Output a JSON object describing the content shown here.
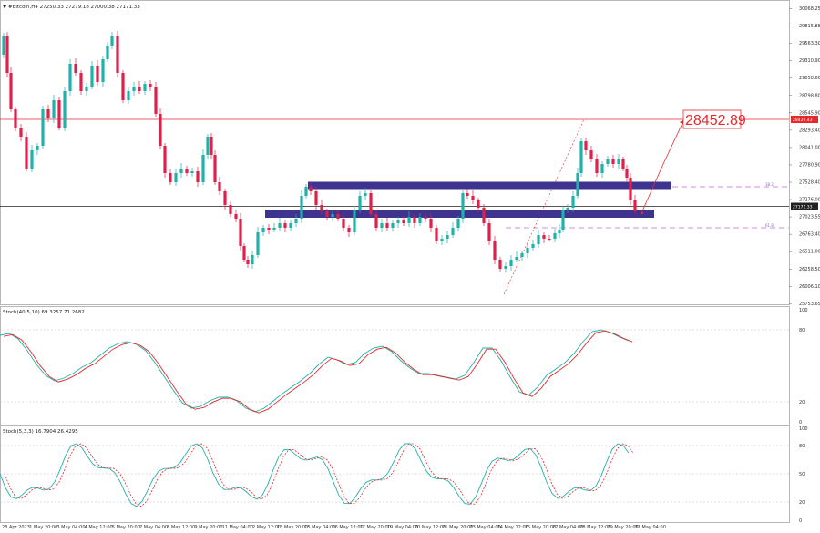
{
  "main": {
    "header": "▼ #Bitcoin,H4  27250.33 27279.18 27000.38 27171.33",
    "price_labels": [
      "30068.25",
      "29815.88",
      "29563.30",
      "29310.90",
      "29058.60",
      "28798.80",
      "28545.90",
      "28293.40",
      "28041.00",
      "27780.90",
      "27528.40",
      "27276.00",
      "27023.55",
      "26763.40",
      "26511.00",
      "26258.50",
      "26006.10",
      "25753.65"
    ],
    "current_price": "27171.33",
    "resistance_price": "28429.43",
    "target_label": "28452.89",
    "fib_upper_label": "38.2",
    "fib_lower_label": "61.8"
  },
  "stoch1": {
    "header": "Stoch(40,5,10) 69.3257 71.2682",
    "levels": [
      "100",
      "80",
      "20",
      "0"
    ]
  },
  "stoch2": {
    "header": "Stoch(5,3,3) 16.7904 26.4295",
    "levels": [
      "100",
      "80",
      "50",
      "20",
      "0"
    ]
  },
  "time_labels": [
    "28 Apr 2023",
    "1 May 20:00",
    "3 May 04:00",
    "4 May 12:00",
    "5 May 20:00",
    "7 May 04:00",
    "8 May 12:00",
    "9 May 20:00",
    "11 May 04:00",
    "12 May 12:00",
    "13 May 20:00",
    "15 May 04:00",
    "16 May 12:00",
    "17 May 20:00",
    "19 May 04:00",
    "20 May 12:00",
    "21 May 20:00",
    "23 May 04:00",
    "24 May 12:00",
    "25 May 20:00",
    "27 May 04:00",
    "28 May 12:00",
    "29 May 20:00",
    "31 May 04:00"
  ],
  "colors": {
    "bull": "#20b2aa",
    "bear": "#e0204a",
    "zone": "#3f3390",
    "red_line": "#e8282a",
    "fib": "#c267d8",
    "stoch_main": "#20b2aa",
    "stoch_signal": "#e8282a"
  }
}
